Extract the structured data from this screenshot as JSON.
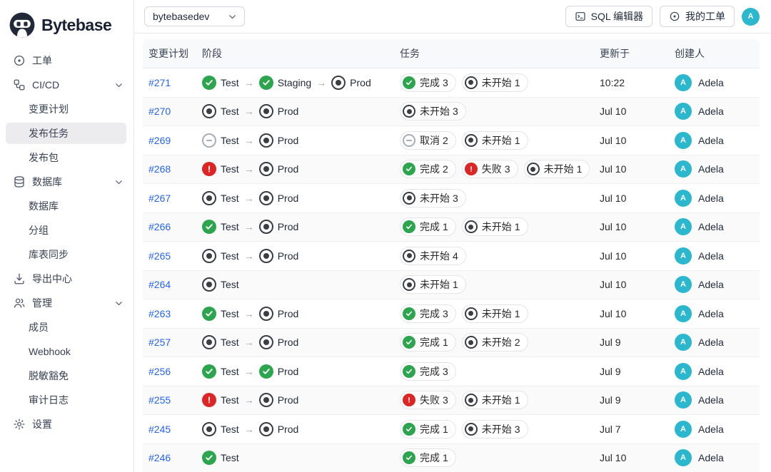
{
  "brand": {
    "name": "Bytebase"
  },
  "topbar": {
    "project": "bytebasedev",
    "sql_editor_label": "SQL 编辑器",
    "my_issues_label": "我的工单",
    "avatar_initial": "A"
  },
  "sidebar": {
    "items": [
      {
        "id": "issues",
        "icon": "issue-icon",
        "label": "工单",
        "level": 0
      },
      {
        "id": "cicd",
        "icon": "pipeline-icon",
        "label": "CI/CD",
        "level": 0,
        "expandable": true
      },
      {
        "id": "change-plans",
        "label": "变更计划",
        "level": 1
      },
      {
        "id": "release-tasks",
        "label": "发布任务",
        "level": 1,
        "active": true
      },
      {
        "id": "release-packages",
        "label": "发布包",
        "level": 1
      },
      {
        "id": "database-group",
        "icon": "database-icon",
        "label": "数据库",
        "level": 0,
        "expandable": true
      },
      {
        "id": "databases",
        "label": "数据库",
        "level": 1
      },
      {
        "id": "groups",
        "label": "分组",
        "level": 1
      },
      {
        "id": "sync-schema",
        "label": "库表同步",
        "level": 1
      },
      {
        "id": "export-center",
        "icon": "export-icon",
        "label": "导出中心",
        "level": 0
      },
      {
        "id": "manage",
        "icon": "members-icon",
        "label": "管理",
        "level": 0,
        "expandable": true
      },
      {
        "id": "members",
        "label": "成员",
        "level": 1
      },
      {
        "id": "webhook",
        "label": "Webhook",
        "level": 1
      },
      {
        "id": "masking-exemption",
        "label": "脱敏豁免",
        "level": 1
      },
      {
        "id": "audit-log",
        "label": "审计日志",
        "level": 1
      },
      {
        "id": "settings",
        "icon": "gear-icon",
        "label": "设置",
        "level": 0
      }
    ]
  },
  "colors": {
    "done": "#2da44e",
    "fail": "#dc2626",
    "notstarted": "#3a3d42",
    "cancel": "#a7aeb6",
    "link": "#2563eb",
    "avatar": "#2bb7ce"
  },
  "table": {
    "columns": [
      "变更计划",
      "阶段",
      "任务",
      "更新于",
      "创建人"
    ],
    "rows": [
      {
        "id": "#271",
        "stages": [
          {
            "s": "done",
            "n": "Test"
          },
          {
            "s": "done",
            "n": "Staging"
          },
          {
            "s": "notstarted",
            "n": "Prod"
          }
        ],
        "tasks": [
          {
            "s": "done",
            "label": "完成",
            "count": "3"
          },
          {
            "s": "notstarted",
            "label": "未开始",
            "count": "1"
          }
        ],
        "updated": "10:22",
        "creator": "Adela",
        "creator_initial": "A"
      },
      {
        "id": "#270",
        "stages": [
          {
            "s": "notstarted",
            "n": "Test"
          },
          {
            "s": "notstarted",
            "n": "Prod"
          }
        ],
        "tasks": [
          {
            "s": "notstarted",
            "label": "未开始",
            "count": "3"
          }
        ],
        "updated": "Jul 10",
        "creator": "Adela",
        "creator_initial": "A"
      },
      {
        "id": "#269",
        "stages": [
          {
            "s": "cancel",
            "n": "Test"
          },
          {
            "s": "notstarted",
            "n": "Prod"
          }
        ],
        "tasks": [
          {
            "s": "cancel",
            "label": "取消",
            "count": "2"
          },
          {
            "s": "notstarted",
            "label": "未开始",
            "count": "1"
          }
        ],
        "updated": "Jul 10",
        "creator": "Adela",
        "creator_initial": "A"
      },
      {
        "id": "#268",
        "stages": [
          {
            "s": "fail",
            "n": "Test"
          },
          {
            "s": "notstarted",
            "n": "Prod"
          }
        ],
        "tasks": [
          {
            "s": "done",
            "label": "完成",
            "count": "2"
          },
          {
            "s": "fail",
            "label": "失败",
            "count": "3"
          },
          {
            "s": "notstarted",
            "label": "未开始",
            "count": "1"
          }
        ],
        "updated": "Jul 10",
        "creator": "Adela",
        "creator_initial": "A"
      },
      {
        "id": "#267",
        "stages": [
          {
            "s": "notstarted",
            "n": "Test"
          },
          {
            "s": "notstarted",
            "n": "Prod"
          }
        ],
        "tasks": [
          {
            "s": "notstarted",
            "label": "未开始",
            "count": "3"
          }
        ],
        "updated": "Jul 10",
        "creator": "Adela",
        "creator_initial": "A"
      },
      {
        "id": "#266",
        "stages": [
          {
            "s": "done",
            "n": "Test"
          },
          {
            "s": "notstarted",
            "n": "Prod"
          }
        ],
        "tasks": [
          {
            "s": "done",
            "label": "完成",
            "count": "1"
          },
          {
            "s": "notstarted",
            "label": "未开始",
            "count": "1"
          }
        ],
        "updated": "Jul 10",
        "creator": "Adela",
        "creator_initial": "A"
      },
      {
        "id": "#265",
        "stages": [
          {
            "s": "notstarted",
            "n": "Test"
          },
          {
            "s": "notstarted",
            "n": "Prod"
          }
        ],
        "tasks": [
          {
            "s": "notstarted",
            "label": "未开始",
            "count": "4"
          }
        ],
        "updated": "Jul 10",
        "creator": "Adela",
        "creator_initial": "A"
      },
      {
        "id": "#264",
        "stages": [
          {
            "s": "notstarted",
            "n": "Test"
          }
        ],
        "tasks": [
          {
            "s": "notstarted",
            "label": "未开始",
            "count": "1"
          }
        ],
        "updated": "Jul 10",
        "creator": "Adela",
        "creator_initial": "A"
      },
      {
        "id": "#263",
        "stages": [
          {
            "s": "done",
            "n": "Test"
          },
          {
            "s": "notstarted",
            "n": "Prod"
          }
        ],
        "tasks": [
          {
            "s": "done",
            "label": "完成",
            "count": "3"
          },
          {
            "s": "notstarted",
            "label": "未开始",
            "count": "1"
          }
        ],
        "updated": "Jul 10",
        "creator": "Adela",
        "creator_initial": "A"
      },
      {
        "id": "#257",
        "stages": [
          {
            "s": "notstarted",
            "n": "Test"
          },
          {
            "s": "notstarted",
            "n": "Prod"
          }
        ],
        "tasks": [
          {
            "s": "done",
            "label": "完成",
            "count": "1"
          },
          {
            "s": "notstarted",
            "label": "未开始",
            "count": "2"
          }
        ],
        "updated": "Jul 9",
        "creator": "Adela",
        "creator_initial": "A"
      },
      {
        "id": "#256",
        "stages": [
          {
            "s": "done",
            "n": "Test"
          },
          {
            "s": "done",
            "n": "Prod"
          }
        ],
        "tasks": [
          {
            "s": "done",
            "label": "完成",
            "count": "3"
          }
        ],
        "updated": "Jul 9",
        "creator": "Adela",
        "creator_initial": "A"
      },
      {
        "id": "#255",
        "stages": [
          {
            "s": "fail",
            "n": "Test"
          },
          {
            "s": "notstarted",
            "n": "Prod"
          }
        ],
        "tasks": [
          {
            "s": "fail",
            "label": "失败",
            "count": "3"
          },
          {
            "s": "notstarted",
            "label": "未开始",
            "count": "1"
          }
        ],
        "updated": "Jul 9",
        "creator": "Adela",
        "creator_initial": "A"
      },
      {
        "id": "#245",
        "stages": [
          {
            "s": "notstarted",
            "n": "Test"
          },
          {
            "s": "notstarted",
            "n": "Prod"
          }
        ],
        "tasks": [
          {
            "s": "done",
            "label": "完成",
            "count": "1"
          },
          {
            "s": "notstarted",
            "label": "未开始",
            "count": "3"
          }
        ],
        "updated": "Jul 7",
        "creator": "Adela",
        "creator_initial": "A"
      },
      {
        "id": "#246",
        "stages": [
          {
            "s": "done",
            "n": "Test"
          }
        ],
        "tasks": [
          {
            "s": "done",
            "label": "完成",
            "count": "1"
          }
        ],
        "updated": "Jul 10",
        "creator": "Adela",
        "creator_initial": "A"
      }
    ]
  }
}
